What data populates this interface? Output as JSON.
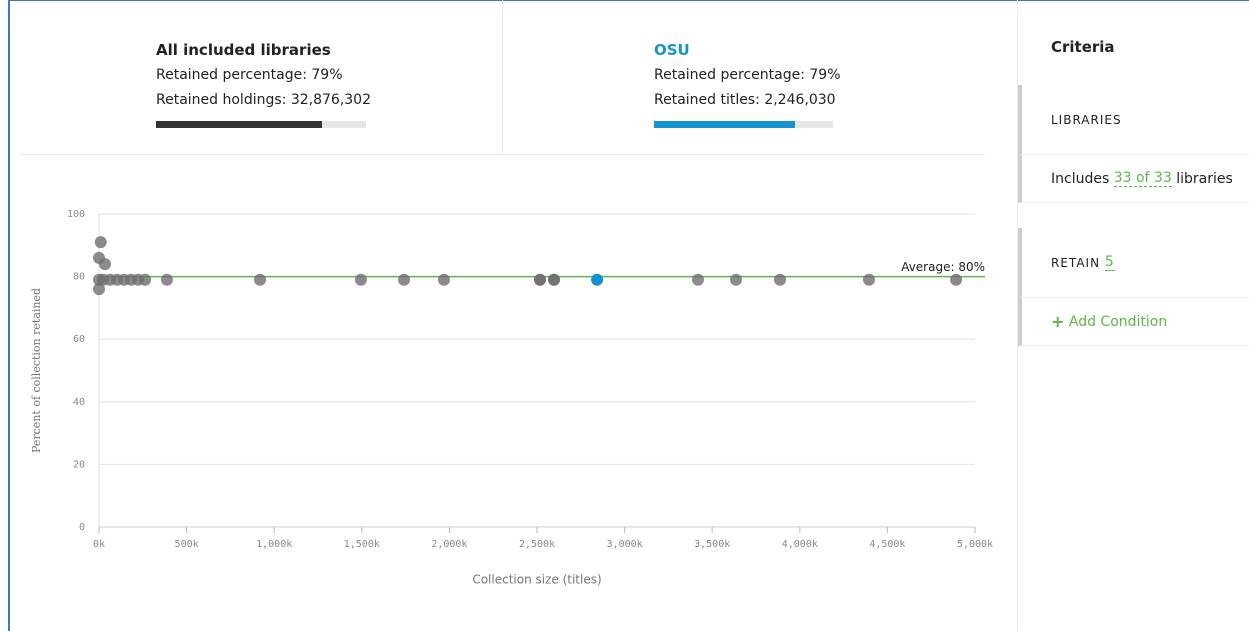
{
  "summary": {
    "all": {
      "title": "All included libraries",
      "percentage": {
        "label": "Retained percentage:",
        "value": 79,
        "value_label": "79%"
      },
      "count": {
        "label": "Retained holdings:",
        "value_label": "32,876,302"
      }
    },
    "osu": {
      "title": "OSU",
      "percentage": {
        "label": "Retained percentage:",
        "value": 79,
        "value_label": "79%"
      },
      "count": {
        "label": "Retained titles:",
        "value_label": "2,246,030"
      }
    }
  },
  "chart_data": {
    "type": "scatter",
    "xlabel": "Collection size (titles)",
    "ylabel": "Percent of collection retained",
    "xlim": [
      0,
      5000000
    ],
    "ylim": [
      0,
      100
    ],
    "xticks": [
      {
        "value": 0,
        "label": "0k"
      },
      {
        "value": 500000,
        "label": "500k"
      },
      {
        "value": 1000000,
        "label": "1,000k"
      },
      {
        "value": 1500000,
        "label": "1,500k"
      },
      {
        "value": 2000000,
        "label": "2,000k"
      },
      {
        "value": 2500000,
        "label": "2,500k"
      },
      {
        "value": 3000000,
        "label": "3,000k"
      },
      {
        "value": 3500000,
        "label": "3,500k"
      },
      {
        "value": 4000000,
        "label": "4,000k"
      },
      {
        "value": 4500000,
        "label": "4,500k"
      },
      {
        "value": 5000000,
        "label": "5,000k"
      }
    ],
    "yticks": [
      0,
      20,
      40,
      60,
      80,
      100
    ],
    "grid": true,
    "average": 80,
    "average_label": "Average: 80%",
    "average_color": "#5db64a",
    "series": [
      {
        "color": "#6e6e6e",
        "x": [
          0,
          0,
          0,
          10000,
          34000,
          23000,
          63000,
          103000,
          143000,
          183000,
          223000,
          263000,
          388000,
          919000,
          1495000,
          1741000,
          1969000,
          2517000,
          2517000,
          2597000,
          2597000,
          3419000,
          3636000,
          3887000,
          4395000,
          4892000
        ],
        "values": [
          76,
          79,
          86,
          91,
          84,
          79,
          79,
          79,
          79,
          79,
          79,
          79,
          79,
          79,
          79,
          79,
          79,
          79,
          79,
          79,
          79,
          79,
          79,
          79,
          79,
          79
        ]
      },
      {
        "color": "#1592d0",
        "x": [
          2843000
        ],
        "values": [
          79
        ]
      }
    ]
  },
  "criteria": {
    "title": "Criteria",
    "libraries": {
      "heading": "LIBRARIES",
      "prefix": "Includes",
      "link": "33 of 33",
      "suffix": "libraries"
    },
    "retain": {
      "heading": "RETAIN",
      "link": "5"
    },
    "add": "Add Condition"
  }
}
